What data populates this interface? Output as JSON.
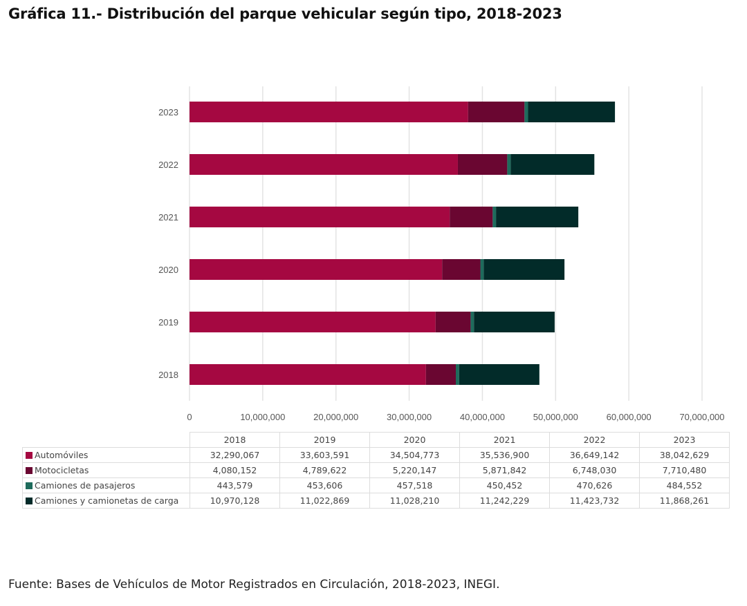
{
  "title": "Gráfica 11.-  Distribución del parque vehicular según tipo, 2018-2023",
  "source": "Fuente: Bases de Vehículos de Motor Registrados en Circulación, 2018-2023, INEGI.",
  "chart_data": {
    "type": "bar",
    "orientation": "horizontal",
    "stacked": true,
    "title": "Gráfica 11.-  Distribución del parque vehicular según tipo, 2018-2023",
    "xlabel": "",
    "ylabel": "",
    "categories": [
      "2018",
      "2019",
      "2020",
      "2021",
      "2022",
      "2023"
    ],
    "xlim": [
      0,
      70000000
    ],
    "xticks": [
      0,
      10000000,
      20000000,
      30000000,
      40000000,
      50000000,
      60000000,
      70000000
    ],
    "xtick_labels": [
      "0",
      "10,000,000",
      "20,000,000",
      "30,000,000",
      "40,000,000",
      "50,000,000",
      "60,000,000",
      "70,000,000"
    ],
    "grid": true,
    "legend": "data-table-below",
    "series": [
      {
        "name": "Automóviles",
        "color": "#a50841",
        "values": [
          32290067,
          33603591,
          34504773,
          35536900,
          36649142,
          38042629
        ]
      },
      {
        "name": "Motocicletas",
        "color": "#6a0631",
        "values": [
          4080152,
          4789622,
          5220147,
          5871842,
          6748030,
          7710480
        ]
      },
      {
        "name": "Camiones de pasajeros",
        "color": "#1e6b5c",
        "values": [
          443579,
          453606,
          457518,
          450452,
          470626,
          484552
        ]
      },
      {
        "name": "Camiones y camionetas de carga",
        "color": "#022b29",
        "values": [
          10970128,
          11022869,
          11028210,
          11242229,
          11423732,
          11868261
        ]
      }
    ]
  },
  "table": {
    "headers": [
      "2018",
      "2019",
      "2020",
      "2021",
      "2022",
      "2023"
    ],
    "rows": [
      {
        "label": "Automóviles",
        "cells": [
          "32,290,067",
          "33,603,591",
          "34,504,773",
          "35,536,900",
          "36,649,142",
          "38,042,629"
        ]
      },
      {
        "label": "Motocicletas",
        "cells": [
          "4,080,152",
          "4,789,622",
          "5,220,147",
          "5,871,842",
          "6,748,030",
          "7,710,480"
        ]
      },
      {
        "label": "Camiones de pasajeros",
        "cells": [
          "443,579",
          "453,606",
          "457,518",
          "450,452",
          "470,626",
          "484,552"
        ]
      },
      {
        "label": "Camiones y camionetas de carga",
        "cells": [
          "10,970,128",
          "11,022,869",
          "11,028,210",
          "11,242,229",
          "11,423,732",
          "11,868,261"
        ]
      }
    ]
  }
}
